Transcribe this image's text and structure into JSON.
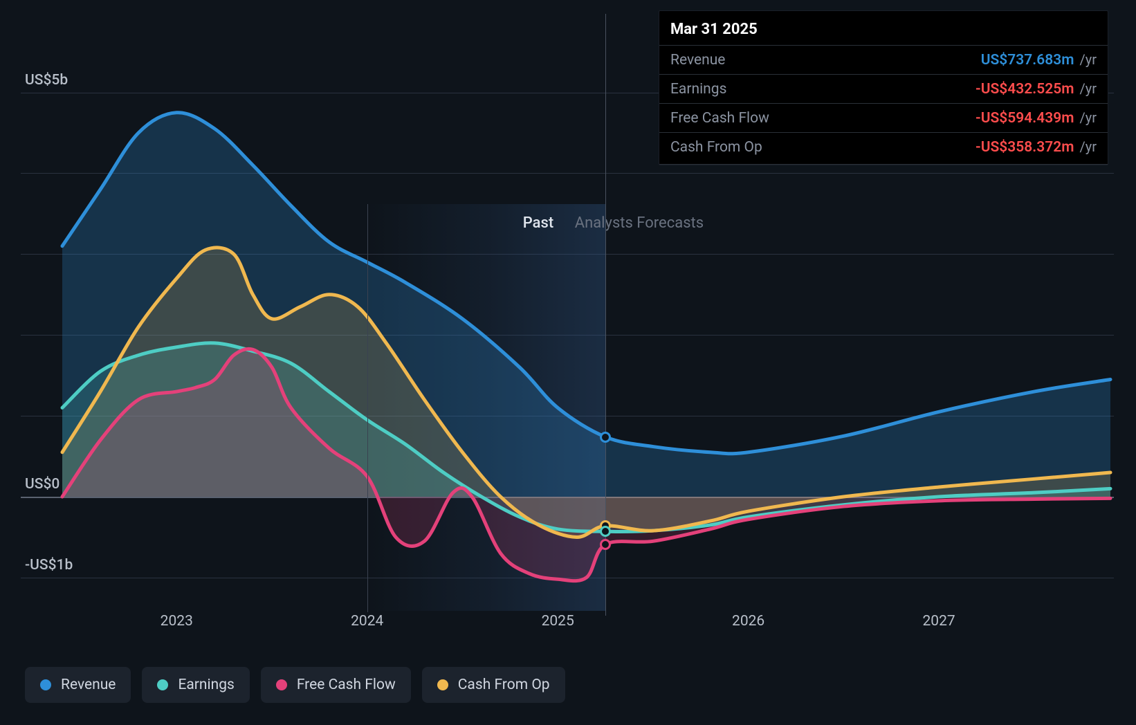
{
  "chart": {
    "type": "area-line",
    "background_color": "#0e141b",
    "grid_color": "#2a3240",
    "zero_line_color": "#5a6270",
    "text_color": "#b8bfc9",
    "label_fontsize": 21,
    "x_axis": {
      "min_year": 2022.4,
      "max_year": 2027.9,
      "ticks": [
        2023,
        2024,
        2025,
        2026,
        2027
      ],
      "tick_labels": [
        "2023",
        "2024",
        "2025",
        "2026",
        "2027"
      ]
    },
    "y_axis": {
      "min": -1.3,
      "max": 5.8,
      "ticks": [
        -1,
        0,
        2,
        4,
        5
      ],
      "tick_labels": {
        "-1": "-US$1b",
        "0": "US$0",
        "5": "US$5b"
      }
    },
    "past_forecast_split_year": 2024.0,
    "hover_year": 2025.25,
    "past_label": "Past",
    "forecast_label": "Analysts Forecasts",
    "series": [
      {
        "key": "revenue",
        "label": "Revenue",
        "color": "#2e8fd9",
        "fill_color": "rgba(46,143,217,0.25)",
        "line_width": 5,
        "points": [
          [
            2022.4,
            3.1
          ],
          [
            2022.6,
            3.8
          ],
          [
            2022.8,
            4.5
          ],
          [
            2023.0,
            4.75
          ],
          [
            2023.2,
            4.55
          ],
          [
            2023.4,
            4.1
          ],
          [
            2023.6,
            3.6
          ],
          [
            2023.8,
            3.15
          ],
          [
            2024.0,
            2.9
          ],
          [
            2024.2,
            2.65
          ],
          [
            2024.5,
            2.2
          ],
          [
            2024.8,
            1.6
          ],
          [
            2025.0,
            1.1
          ],
          [
            2025.25,
            0.74
          ],
          [
            2025.5,
            0.62
          ],
          [
            2025.8,
            0.55
          ],
          [
            2026.0,
            0.55
          ],
          [
            2026.5,
            0.75
          ],
          [
            2027.0,
            1.05
          ],
          [
            2027.5,
            1.3
          ],
          [
            2027.9,
            1.45
          ]
        ]
      },
      {
        "key": "earnings",
        "label": "Earnings",
        "color": "#4ecdc4",
        "fill_color": "rgba(78,205,196,0.2)",
        "line_width": 5,
        "points": [
          [
            2022.4,
            1.1
          ],
          [
            2022.6,
            1.55
          ],
          [
            2022.8,
            1.75
          ],
          [
            2023.0,
            1.85
          ],
          [
            2023.2,
            1.9
          ],
          [
            2023.4,
            1.8
          ],
          [
            2023.6,
            1.65
          ],
          [
            2023.8,
            1.3
          ],
          [
            2024.0,
            0.95
          ],
          [
            2024.2,
            0.65
          ],
          [
            2024.4,
            0.3
          ],
          [
            2024.6,
            0.0
          ],
          [
            2024.8,
            -0.25
          ],
          [
            2025.0,
            -0.4
          ],
          [
            2025.25,
            -0.43
          ],
          [
            2025.5,
            -0.42
          ],
          [
            2025.8,
            -0.35
          ],
          [
            2026.0,
            -0.25
          ],
          [
            2026.5,
            -0.1
          ],
          [
            2027.0,
            0.0
          ],
          [
            2027.5,
            0.05
          ],
          [
            2027.9,
            0.1
          ]
        ]
      },
      {
        "key": "fcf",
        "label": "Free Cash Flow",
        "color": "#e4417a",
        "fill_color": "rgba(228,65,122,0.18)",
        "line_width": 5,
        "points": [
          [
            2022.4,
            0.0
          ],
          [
            2022.6,
            0.7
          ],
          [
            2022.8,
            1.2
          ],
          [
            2023.0,
            1.3
          ],
          [
            2023.1,
            1.35
          ],
          [
            2023.2,
            1.45
          ],
          [
            2023.3,
            1.75
          ],
          [
            2023.4,
            1.82
          ],
          [
            2023.5,
            1.6
          ],
          [
            2023.6,
            1.1
          ],
          [
            2023.8,
            0.6
          ],
          [
            2024.0,
            0.25
          ],
          [
            2024.15,
            -0.5
          ],
          [
            2024.3,
            -0.55
          ],
          [
            2024.45,
            0.05
          ],
          [
            2024.55,
            0.0
          ],
          [
            2024.7,
            -0.7
          ],
          [
            2024.85,
            -0.95
          ],
          [
            2025.0,
            -1.02
          ],
          [
            2025.15,
            -1.0
          ],
          [
            2025.25,
            -0.59
          ],
          [
            2025.5,
            -0.55
          ],
          [
            2025.8,
            -0.4
          ],
          [
            2026.0,
            -0.28
          ],
          [
            2026.5,
            -0.12
          ],
          [
            2027.0,
            -0.05
          ],
          [
            2027.5,
            -0.03
          ],
          [
            2027.9,
            -0.02
          ]
        ]
      },
      {
        "key": "cfo",
        "label": "Cash From Op",
        "color": "#f0b84f",
        "fill_color": "rgba(240,184,79,0.18)",
        "line_width": 5,
        "points": [
          [
            2022.4,
            0.55
          ],
          [
            2022.6,
            1.3
          ],
          [
            2022.8,
            2.1
          ],
          [
            2023.0,
            2.7
          ],
          [
            2023.15,
            3.05
          ],
          [
            2023.3,
            3.0
          ],
          [
            2023.4,
            2.5
          ],
          [
            2023.5,
            2.2
          ],
          [
            2023.65,
            2.35
          ],
          [
            2023.8,
            2.5
          ],
          [
            2023.95,
            2.35
          ],
          [
            2024.1,
            1.9
          ],
          [
            2024.3,
            1.2
          ],
          [
            2024.5,
            0.55
          ],
          [
            2024.7,
            0.0
          ],
          [
            2024.9,
            -0.35
          ],
          [
            2025.1,
            -0.5
          ],
          [
            2025.25,
            -0.36
          ],
          [
            2025.5,
            -0.42
          ],
          [
            2025.8,
            -0.3
          ],
          [
            2026.0,
            -0.18
          ],
          [
            2026.5,
            0.0
          ],
          [
            2027.0,
            0.12
          ],
          [
            2027.5,
            0.22
          ],
          [
            2027.9,
            0.3
          ]
        ]
      }
    ]
  },
  "tooltip": {
    "date": "Mar 31 2025",
    "rows": [
      {
        "label": "Revenue",
        "value": "US$737.683m",
        "unit": "/yr",
        "color": "#2e8fd9"
      },
      {
        "label": "Earnings",
        "value": "-US$432.525m",
        "unit": "/yr",
        "color": "#ff4d4d"
      },
      {
        "label": "Free Cash Flow",
        "value": "-US$594.439m",
        "unit": "/yr",
        "color": "#ff4d4d"
      },
      {
        "label": "Cash From Op",
        "value": "-US$358.372m",
        "unit": "/yr",
        "color": "#ff4d4d"
      }
    ]
  },
  "markers": [
    {
      "series": "revenue",
      "year": 2025.25,
      "value": 0.74,
      "color": "#2e8fd9"
    },
    {
      "series": "cfo",
      "year": 2025.25,
      "value": -0.36,
      "color": "#f0b84f"
    },
    {
      "series": "earnings",
      "year": 2025.25,
      "value": -0.43,
      "color": "#4ecdc4"
    },
    {
      "series": "fcf",
      "year": 2025.25,
      "value": -0.59,
      "color": "#e4417a"
    }
  ],
  "legend": [
    {
      "key": "revenue",
      "label": "Revenue",
      "color": "#2e8fd9"
    },
    {
      "key": "earnings",
      "label": "Earnings",
      "color": "#4ecdc4"
    },
    {
      "key": "fcf",
      "label": "Free Cash Flow",
      "color": "#e4417a"
    },
    {
      "key": "cfo",
      "label": "Cash From Op",
      "color": "#f0b84f"
    }
  ]
}
